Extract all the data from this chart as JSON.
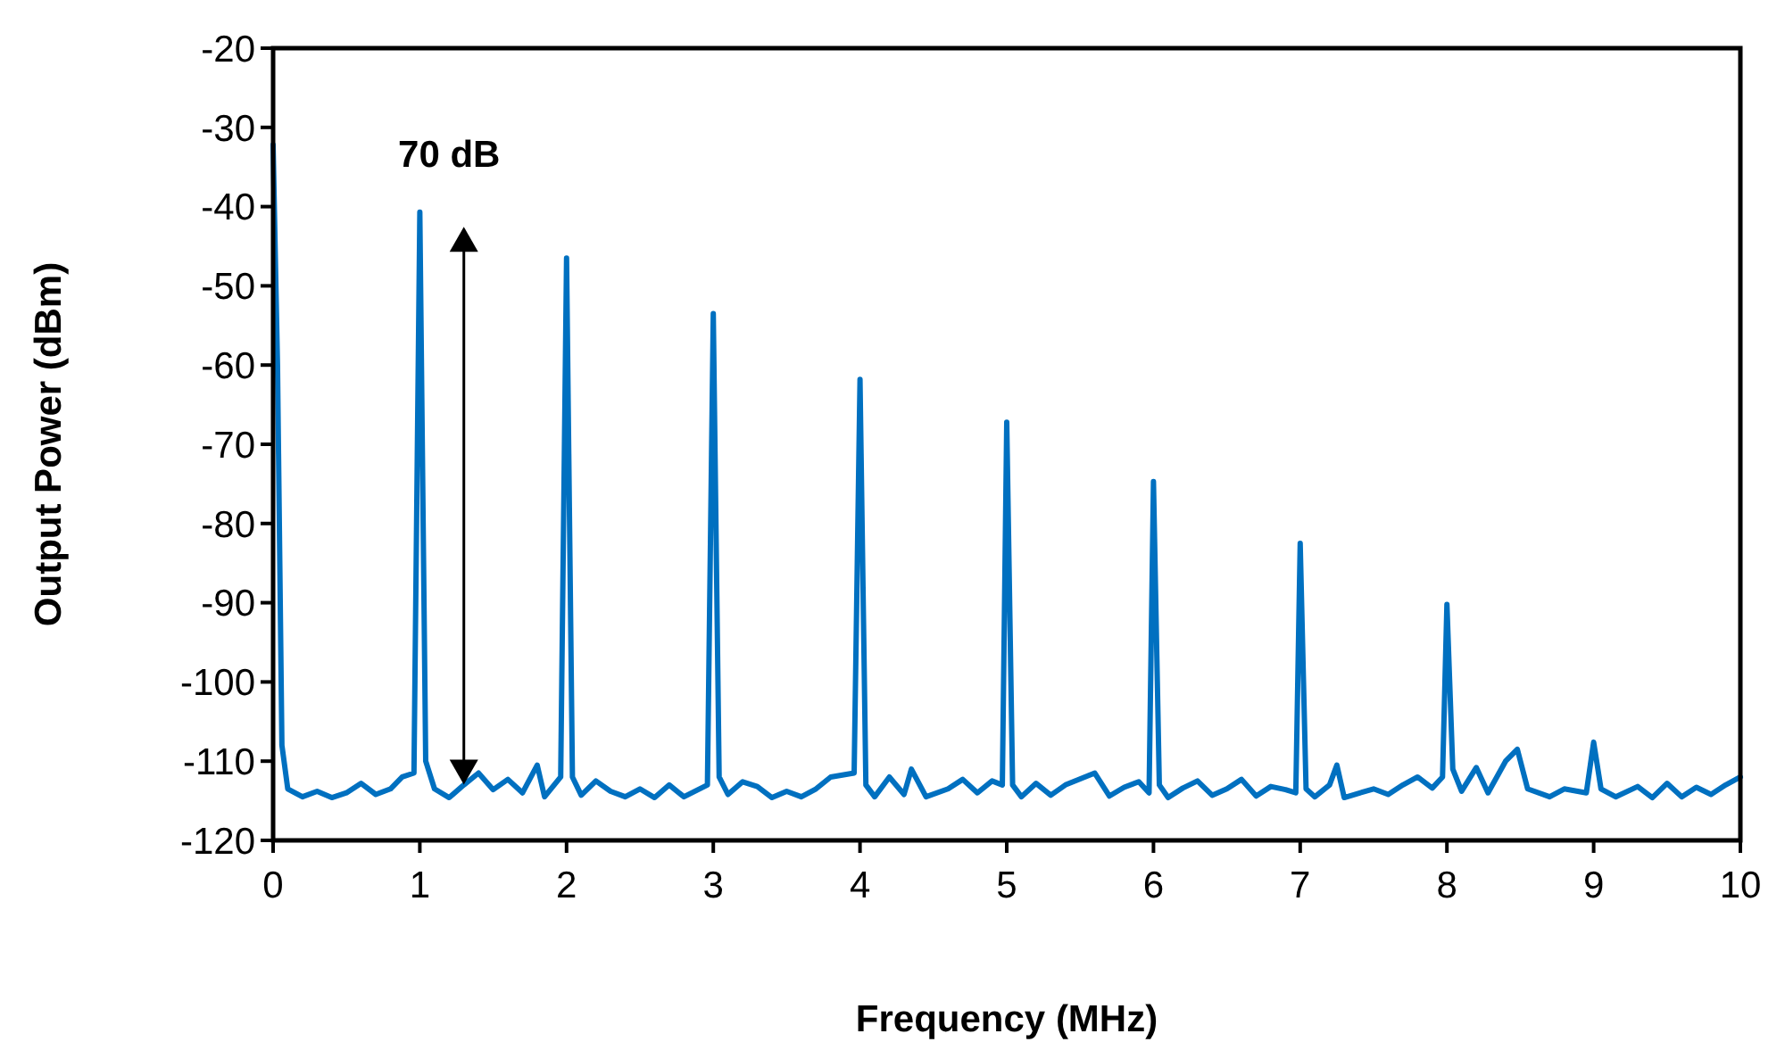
{
  "chart_data": {
    "type": "line",
    "xlabel": "Frequency (MHz)",
    "ylabel": "Output Power (dBm)",
    "annotations": [
      "70 dB"
    ],
    "xlim": [
      0,
      10
    ],
    "xticks": [
      0,
      1,
      2,
      3,
      4,
      5,
      6,
      7,
      8,
      9,
      10
    ],
    "ylim": [
      -120,
      -20
    ],
    "yticks": [
      -120,
      -110,
      -100,
      -90,
      -80,
      -70,
      -60,
      -50,
      -40,
      -30,
      -20
    ],
    "grid": false,
    "marker": "none",
    "line_style": "solid",
    "series": [
      {
        "color": "#0070c0",
        "x": [
          0,
          0.03,
          0.06,
          0.1,
          0.2,
          0.3,
          0.4,
          0.5,
          0.6,
          0.7,
          0.8,
          0.88,
          0.96,
          1,
          1.04,
          1.1,
          1.2,
          1.3,
          1.4,
          1.5,
          1.6,
          1.7,
          1.8,
          1.85,
          1.96,
          2,
          2.04,
          2.1,
          2.2,
          2.3,
          2.4,
          2.5,
          2.6,
          2.7,
          2.8,
          2.96,
          3,
          3.04,
          3.1,
          3.2,
          3.3,
          3.4,
          3.5,
          3.6,
          3.7,
          3.8,
          3.96,
          4,
          4.04,
          4.1,
          4.2,
          4.3,
          4.35,
          4.45,
          4.6,
          4.7,
          4.8,
          4.9,
          4.97,
          5,
          5.04,
          5.1,
          5.2,
          5.3,
          5.4,
          5.6,
          5.7,
          5.8,
          5.9,
          5.97,
          6,
          6.04,
          6.1,
          6.2,
          6.3,
          6.4,
          6.5,
          6.6,
          6.7,
          6.8,
          6.9,
          6.97,
          7,
          7.04,
          7.1,
          7.2,
          7.25,
          7.3,
          7.5,
          7.6,
          7.7,
          7.8,
          7.9,
          7.97,
          8,
          8.04,
          8.1,
          8.2,
          8.28,
          8.4,
          8.48,
          8.55,
          8.7,
          8.8,
          8.95,
          9,
          9.05,
          9.15,
          9.3,
          9.4,
          9.5,
          9.6,
          9.7,
          9.8,
          9.9,
          10
        ],
        "values": [
          -32.2,
          -60,
          -108,
          -113.5,
          -114.5,
          -113.8,
          -114.6,
          -114,
          -112.8,
          -114.2,
          -113.5,
          -112,
          -111.5,
          -40.7,
          -110,
          -113.5,
          -114.6,
          -113,
          -111.5,
          -113.6,
          -112.3,
          -114,
          -110.5,
          -114.5,
          -112,
          -46.5,
          -112,
          -114.3,
          -112.5,
          -113.8,
          -114.5,
          -113.5,
          -114.6,
          -113,
          -114.5,
          -113,
          -53.5,
          -112,
          -114.2,
          -112.6,
          -113.2,
          -114.6,
          -113.8,
          -114.5,
          -113.5,
          -112,
          -111.5,
          -61.8,
          -113,
          -114.5,
          -112,
          -114.2,
          -111,
          -114.5,
          -113.5,
          -112.3,
          -114,
          -112.5,
          -113,
          -67.2,
          -113,
          -114.5,
          -112.8,
          -114.3,
          -113,
          -111.5,
          -114.4,
          -113.3,
          -112.6,
          -114,
          -74.7,
          -113,
          -114.6,
          -113.4,
          -112.5,
          -114.3,
          -113.5,
          -112.3,
          -114.4,
          -113.2,
          -113.6,
          -114,
          -82.5,
          -113.5,
          -114.5,
          -113,
          -110.5,
          -114.6,
          -113.5,
          -114.2,
          -113,
          -112,
          -113.4,
          -112,
          -90.2,
          -111,
          -113.8,
          -110.8,
          -114,
          -110,
          -108.5,
          -113.5,
          -114.5,
          -113.5,
          -114,
          -107.6,
          -113.5,
          -114.5,
          -113.2,
          -114.6,
          -112.8,
          -114.5,
          -113.3,
          -114.2,
          -113,
          -112
        ]
      }
    ]
  }
}
